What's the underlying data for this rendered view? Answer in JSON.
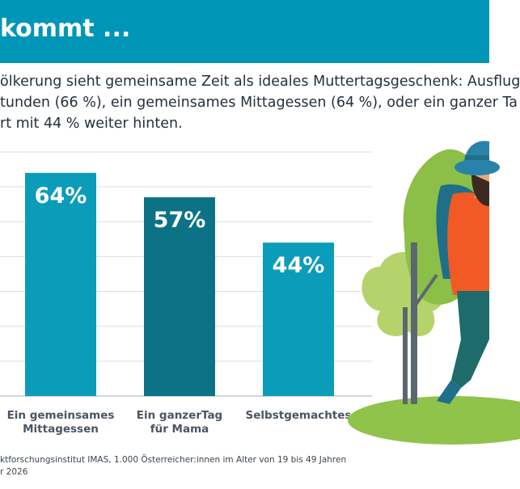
{
  "header": {
    "title": "kommt ..."
  },
  "subtitle_lines": [
    "ölkerung sieht gemeinsame Zeit als ideales Muttertagsgeschenk: Ausflug",
    "tunden (66 %), ein gemeinsames Mittagessen (64 %), oder ein ganzer Ta",
    "rt mit 44 % weiter hinten."
  ],
  "chart_data": {
    "type": "bar",
    "categories": [
      [
        "Ein gemeinsames",
        "Mittagessen"
      ],
      [
        "Ein ganzerTag",
        "für Mama"
      ],
      [
        "Selbstgemachtes"
      ]
    ],
    "values": [
      64,
      57,
      44
    ],
    "value_labels": [
      "64%",
      "57%",
      "44%"
    ],
    "ylim": [
      0,
      70
    ],
    "grid": true,
    "colors": [
      "#0b9cb9",
      "#0c7285",
      "#0b9cb9"
    ]
  },
  "source_lines": [
    "ktforschungsinstitut IMAS, 1.000 Österreicher:innen im Alter von 19 bis 49 Jahren",
    "r 2026"
  ],
  "illustration": {
    "name": "hiker-with-trees"
  }
}
